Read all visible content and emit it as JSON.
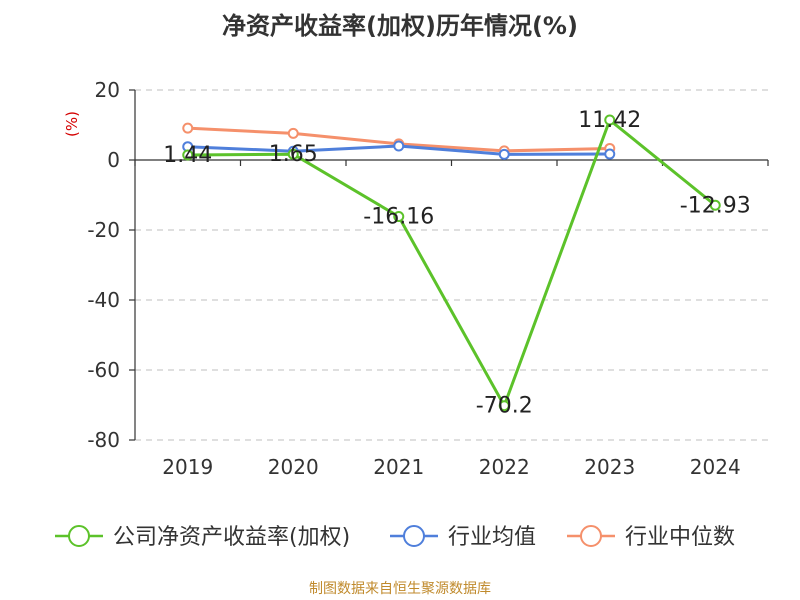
{
  "chart_data": {
    "type": "line",
    "title": "净资产收益率(加权)历年情况(%)",
    "ylabel": "(%)",
    "categories": [
      "2019",
      "2020",
      "2021",
      "2022",
      "2023",
      "2024"
    ],
    "ylim": [
      -80,
      20
    ],
    "yticks": [
      20,
      0,
      -20,
      -40,
      -60,
      -80
    ],
    "grid": true,
    "legend_position": "bottom",
    "series": [
      {
        "name": "公司净资产收益率(加权)",
        "color": "#5cc22a",
        "values": [
          1.44,
          1.65,
          -16.16,
          -70.2,
          11.42,
          -12.93
        ],
        "labels": [
          "1.44",
          "1.65",
          "-16.16",
          "-70.2",
          "11.42",
          "-12.93"
        ]
      },
      {
        "name": "行业均值",
        "color": "#4f7fdb",
        "values": [
          3.8,
          2.5,
          4.0,
          1.6,
          1.7,
          null
        ]
      },
      {
        "name": "行业中位数",
        "color": "#f5906b",
        "values": [
          9.1,
          7.6,
          4.6,
          2.6,
          3.3,
          null
        ]
      }
    ]
  },
  "footer": "制图数据来自恒生聚源数据库"
}
